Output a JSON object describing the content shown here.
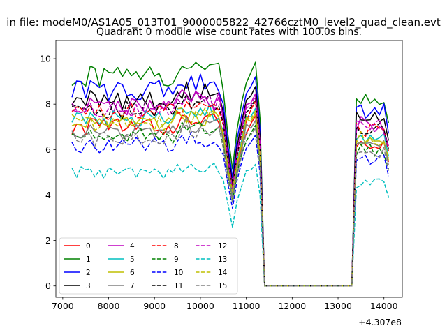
{
  "chart_data": {
    "type": "line",
    "suptitle": "in file: modeM0/AS1A05_013T01_9000005822_42766cztM0_level2_quad_clean.evt",
    "title": "Quadrant 0 module wise count rates with 100.0s bins.",
    "xlabel": "",
    "ylabel": "",
    "x_offset_label": "+4.307e8",
    "xlim": [
      6850,
      14400
    ],
    "ylim": [
      -0.5,
      10.8
    ],
    "xticks": [
      7000,
      8000,
      9000,
      10000,
      11000,
      12000,
      13000,
      14000
    ],
    "yticks": [
      0,
      2,
      4,
      6,
      8,
      10
    ],
    "bin": 100,
    "x_start": 7200,
    "x_end": 14100,
    "drop": {
      "start": 10500,
      "bottom": 10700,
      "recover": 11000,
      "peak": 11200,
      "gap_start": 11400,
      "gap_end": 13300,
      "return": 13400
    },
    "grid": false,
    "legend": {
      "location": "lower-left",
      "columns": 4
    },
    "series": [
      {
        "name": "0",
        "color": "#ff0000",
        "style": "solid",
        "level": 7.0
      },
      {
        "name": "1",
        "color": "#008000",
        "style": "solid",
        "level": 9.2
      },
      {
        "name": "2",
        "color": "#0000ff",
        "style": "solid",
        "level": 8.6
      },
      {
        "name": "3",
        "color": "#000000",
        "style": "solid",
        "level": 8.2
      },
      {
        "name": "4",
        "color": "#bf00bf",
        "style": "solid",
        "level": 7.9
      },
      {
        "name": "5",
        "color": "#00bfbf",
        "style": "solid",
        "level": 7.3
      },
      {
        "name": "6",
        "color": "#bfbf00",
        "style": "solid",
        "level": 7.1
      },
      {
        "name": "7",
        "color": "#808080",
        "style": "solid",
        "level": 6.8
      },
      {
        "name": "8",
        "color": "#ff0000",
        "style": "dashed",
        "level": 7.6
      },
      {
        "name": "9",
        "color": "#008000",
        "style": "dashed",
        "level": 6.6
      },
      {
        "name": "10",
        "color": "#0000ff",
        "style": "dashed",
        "level": 6.2
      },
      {
        "name": "11",
        "color": "#000000",
        "style": "dashed",
        "level": 7.7
      },
      {
        "name": "12",
        "color": "#bf00bf",
        "style": "dashed",
        "level": 7.8
      },
      {
        "name": "13",
        "color": "#00bfbf",
        "style": "dashed",
        "level": 5.0
      },
      {
        "name": "14",
        "color": "#bfbf00",
        "style": "dashed",
        "level": 7.2
      },
      {
        "name": "15",
        "color": "#808080",
        "style": "dashed",
        "level": 6.5
      }
    ]
  }
}
